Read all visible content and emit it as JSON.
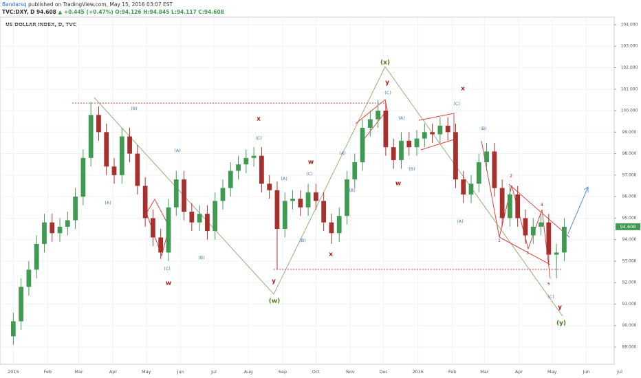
{
  "header": {
    "author": "Bandarsq",
    "published": "published on TradingView.com, May 15, 2016 03:07 EST",
    "symbol": "TVC:DXY, D",
    "last": "94.608",
    "change": "▲ +0.445 (+0.47%)",
    "ohlc": "O:94.126 H:94.845 L:94.117 C:94.608"
  },
  "chart_data": {
    "type": "candlestick",
    "title": "US DOLLAR INDEX, D, TVC",
    "last_price_label": "94.608",
    "up_color": "#3f9b52",
    "down_color": "#a8302c",
    "x": [
      0,
      7,
      14,
      21,
      28,
      35,
      42,
      49,
      56,
      63,
      70,
      77,
      84,
      91,
      98,
      105,
      112,
      119,
      126,
      133,
      140,
      147,
      154,
      161,
      168,
      175,
      182,
      189,
      196,
      203,
      210,
      217,
      224,
      231,
      238,
      245,
      252,
      259,
      266,
      273,
      280,
      287,
      294,
      301,
      308,
      315,
      322,
      329,
      336,
      343,
      350,
      357,
      364,
      371,
      378,
      385,
      392,
      399,
      406,
      413,
      420,
      427,
      434,
      441,
      448,
      455,
      462,
      469,
      476,
      483,
      490,
      497
    ],
    "open": [
      89.5,
      90.2,
      91.8,
      92.6,
      93.8,
      94.8,
      94.3,
      94.6,
      94.9,
      96.0,
      97.8,
      99.8,
      99.0,
      97.4,
      97.0,
      98.8,
      98.0,
      96.5,
      95.0,
      94.1,
      93.4,
      95.5,
      96.8,
      95.3,
      94.8,
      95.2,
      94.4,
      95.8,
      96.4,
      97.2,
      97.5,
      97.8,
      97.9,
      96.6,
      96.3,
      94.5,
      95.8,
      95.9,
      95.5,
      96.2,
      95.8,
      94.8,
      94.3,
      95.1,
      96.8,
      97.6,
      99.2,
      99.6,
      100.0,
      98.3,
      97.7,
      98.6,
      98.3,
      98.7,
      99.0,
      98.9,
      99.3,
      99.0,
      96.8,
      96.1,
      96.6,
      97.6,
      98.1,
      96.4,
      95.0,
      96.1,
      95.0,
      94.2,
      94.6,
      94.8,
      93.3,
      93.4
    ],
    "high": [
      90.6,
      92.2,
      93.0,
      94.2,
      95.2,
      95.2,
      95.0,
      95.3,
      96.4,
      98.2,
      100.4,
      100.2,
      99.4,
      97.8,
      99.2,
      99.2,
      98.4,
      96.9,
      95.4,
      94.5,
      95.9,
      97.2,
      97.2,
      95.7,
      95.6,
      95.6,
      96.2,
      96.8,
      97.6,
      97.9,
      98.2,
      98.3,
      98.3,
      97.0,
      96.7,
      96.2,
      96.3,
      96.3,
      96.6,
      96.6,
      96.2,
      95.2,
      95.5,
      97.2,
      98.0,
      99.6,
      100.0,
      100.5,
      100.4,
      98.7,
      99.0,
      99.0,
      99.1,
      99.4,
      99.4,
      99.7,
      99.7,
      99.4,
      97.2,
      97.0,
      98.0,
      98.5,
      98.5,
      96.8,
      96.5,
      96.5,
      95.4,
      95.0,
      95.2,
      95.2,
      93.8,
      95.0
    ],
    "low": [
      89.1,
      89.8,
      91.4,
      92.2,
      93.4,
      93.9,
      93.9,
      94.2,
      94.5,
      95.6,
      97.4,
      98.6,
      97.0,
      96.6,
      96.6,
      97.6,
      96.1,
      94.6,
      93.7,
      93.1,
      93.0,
      95.1,
      94.9,
      94.4,
      94.4,
      94.0,
      94.0,
      95.4,
      96.0,
      96.8,
      97.1,
      97.4,
      96.2,
      95.9,
      92.6,
      94.1,
      95.4,
      95.1,
      95.1,
      95.4,
      94.4,
      93.8,
      93.9,
      94.7,
      96.4,
      97.2,
      98.8,
      99.2,
      97.9,
      97.3,
      97.3,
      97.9,
      97.9,
      98.3,
      98.5,
      98.5,
      98.6,
      96.4,
      95.7,
      95.7,
      96.2,
      97.2,
      96.0,
      94.6,
      94.6,
      94.6,
      93.8,
      93.8,
      94.2,
      92.9,
      92.2,
      93.0
    ],
    "close": [
      90.2,
      91.8,
      92.6,
      93.8,
      94.8,
      94.3,
      94.6,
      94.9,
      96.0,
      97.8,
      99.8,
      99.0,
      97.4,
      97.0,
      98.8,
      98.0,
      96.5,
      95.0,
      94.1,
      93.4,
      95.5,
      96.8,
      95.3,
      94.8,
      95.2,
      94.4,
      95.8,
      96.4,
      97.2,
      97.5,
      97.8,
      97.9,
      96.6,
      96.3,
      94.5,
      95.8,
      95.9,
      95.5,
      96.2,
      95.8,
      94.8,
      94.3,
      95.1,
      96.8,
      97.6,
      99.2,
      99.6,
      100.0,
      98.3,
      97.7,
      98.6,
      98.3,
      98.7,
      99.0,
      98.9,
      99.3,
      99.0,
      96.8,
      96.1,
      96.6,
      97.6,
      98.1,
      96.4,
      95.0,
      96.1,
      95.0,
      94.2,
      94.6,
      94.8,
      93.3,
      93.4,
      94.6
    ],
    "xlim": [
      -12,
      565
    ],
    "ylim": [
      88.2,
      104.35
    ],
    "xticks": [
      {
        "value": 0,
        "label": "2015"
      },
      {
        "value": 31,
        "label": "Feb"
      },
      {
        "value": 59,
        "label": "Mar"
      },
      {
        "value": 90,
        "label": "Apr"
      },
      {
        "value": 120,
        "label": "May"
      },
      {
        "value": 151,
        "label": "Jun"
      },
      {
        "value": 181,
        "label": "Jul"
      },
      {
        "value": 212,
        "label": "Aug"
      },
      {
        "value": 243,
        "label": "Sep"
      },
      {
        "value": 273,
        "label": "Oct"
      },
      {
        "value": 304,
        "label": "Nov"
      },
      {
        "value": 334,
        "label": "Dec"
      },
      {
        "value": 365,
        "label": "2016"
      },
      {
        "value": 396,
        "label": "Feb"
      },
      {
        "value": 425,
        "label": "Mar"
      },
      {
        "value": 456,
        "label": "Apr"
      },
      {
        "value": 486,
        "label": "May"
      },
      {
        "value": 517,
        "label": "Jun"
      },
      {
        "value": 547,
        "label": "Jul"
      }
    ],
    "yticks": [
      {
        "value": 89,
        "label": "89.000"
      },
      {
        "value": 90,
        "label": "90.000"
      },
      {
        "value": 91,
        "label": "91.000"
      },
      {
        "value": 92,
        "label": "92.000"
      },
      {
        "value": 93,
        "label": "93.000"
      },
      {
        "value": 94,
        "label": "94.000"
      },
      {
        "value": 95,
        "label": "95.000"
      },
      {
        "value": 96,
        "label": "96.000"
      },
      {
        "value": 97,
        "label": "97.000"
      },
      {
        "value": 98,
        "label": "98.000"
      },
      {
        "value": 99,
        "label": "99.000"
      },
      {
        "value": 100,
        "label": "100.000"
      },
      {
        "value": 101,
        "label": "101.000"
      },
      {
        "value": 102,
        "label": "102.000"
      },
      {
        "value": 103,
        "label": "103.000"
      },
      {
        "value": 104,
        "label": "104.000"
      }
    ],
    "grid": true,
    "annotations": [
      {
        "text": "(B)",
        "color": "#4a78c8"
      },
      {
        "text": "(A)",
        "color": "#4a78c8"
      },
      {
        "text": "(A)",
        "color": "#4a78c8"
      },
      {
        "text": "(C)",
        "color": "#4a78c8"
      },
      {
        "text": "(B)",
        "color": "#4a78c8"
      },
      {
        "text": "w",
        "color": "#b01e1e"
      },
      {
        "text": "x",
        "color": "#b01e1e"
      },
      {
        "text": "(C)",
        "color": "#4a78c8"
      },
      {
        "text": "(A)",
        "color": "#4a78c8"
      },
      {
        "text": "(C)",
        "color": "#4a78c8"
      },
      {
        "text": "(B)",
        "color": "#4a78c8"
      },
      {
        "text": "w",
        "color": "#b01e1e"
      },
      {
        "text": "(A)",
        "color": "#4a78c8"
      },
      {
        "text": "(B)",
        "color": "#4a78c8"
      },
      {
        "text": "y",
        "color": "#b01e1e"
      },
      {
        "text": "(w)",
        "color": "#4c7a1e"
      },
      {
        "text": "x",
        "color": "#b01e1e"
      },
      {
        "text": "(x)",
        "color": "#4c7a1e"
      },
      {
        "text": "y",
        "color": "#b01e1e"
      },
      {
        "text": "(C)",
        "color": "#4a78c8"
      },
      {
        "text": "(A)",
        "color": "#4a78c8"
      },
      {
        "text": "(B)",
        "color": "#4a78c8"
      },
      {
        "text": "w",
        "color": "#b01e1e"
      },
      {
        "text": "x",
        "color": "#b01e1e"
      },
      {
        "text": "(C)",
        "color": "#4a78c8"
      },
      {
        "text": "(B)",
        "color": "#4a78c8"
      },
      {
        "text": "(A)",
        "color": "#4a78c8"
      },
      {
        "text": "1",
        "color": "#555555"
      },
      {
        "text": "2",
        "color": "#b01e1e"
      },
      {
        "text": "3",
        "color": "#555555"
      },
      {
        "text": "4",
        "color": "#b01e1e"
      },
      {
        "text": "5",
        "color": "#b01e1e"
      },
      {
        "text": "(C)",
        "color": "#4a78c8"
      },
      {
        "text": "y",
        "color": "#b01e1e"
      },
      {
        "text": "(y)",
        "color": "#4c7a1e"
      }
    ]
  }
}
